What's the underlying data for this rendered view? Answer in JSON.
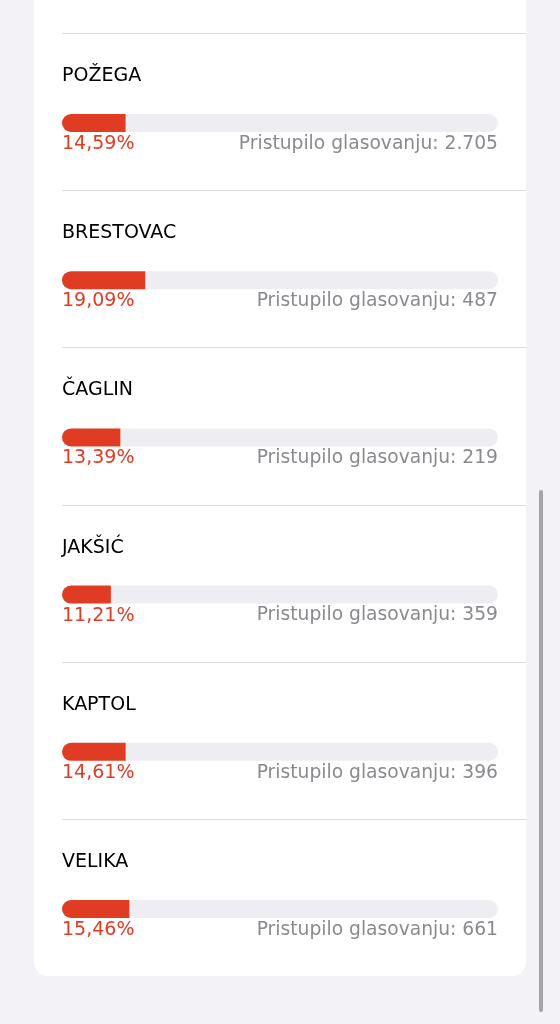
{
  "chart_data": {
    "type": "bar",
    "orientation": "horizontal",
    "stacked": true,
    "categories": [
      "POŽEGA",
      "BRESTOVAC",
      "ČAGLIN",
      "JAKŠIĆ",
      "KAPTOL",
      "VELIKA"
    ],
    "series": [
      {
        "color": "#e03c24",
        "values": [
          14.59,
          19.09,
          13.39,
          11.21,
          14.61,
          15.46
        ],
        "value_labels": [
          "14,59%",
          "19,09%",
          "13,39%",
          "11,21%",
          "14,61%",
          "15,46%"
        ]
      },
      {
        "color": "#eeeef2",
        "values": [
          85.41,
          80.91,
          86.61,
          88.79,
          85.39,
          84.54
        ]
      }
    ],
    "annotations": [
      "Pristupilo glasovanju: 2.705",
      "Pristupilo glasovanju: 487",
      "Pristupilo glasovanju: 219",
      "Pristupilo glasovanju: 359",
      "Pristupilo glasovanju: 396",
      "Pristupilo glasovanju: 661"
    ],
    "xlim": [
      0,
      100
    ],
    "grid": "y",
    "tick_labels": "y"
  }
}
